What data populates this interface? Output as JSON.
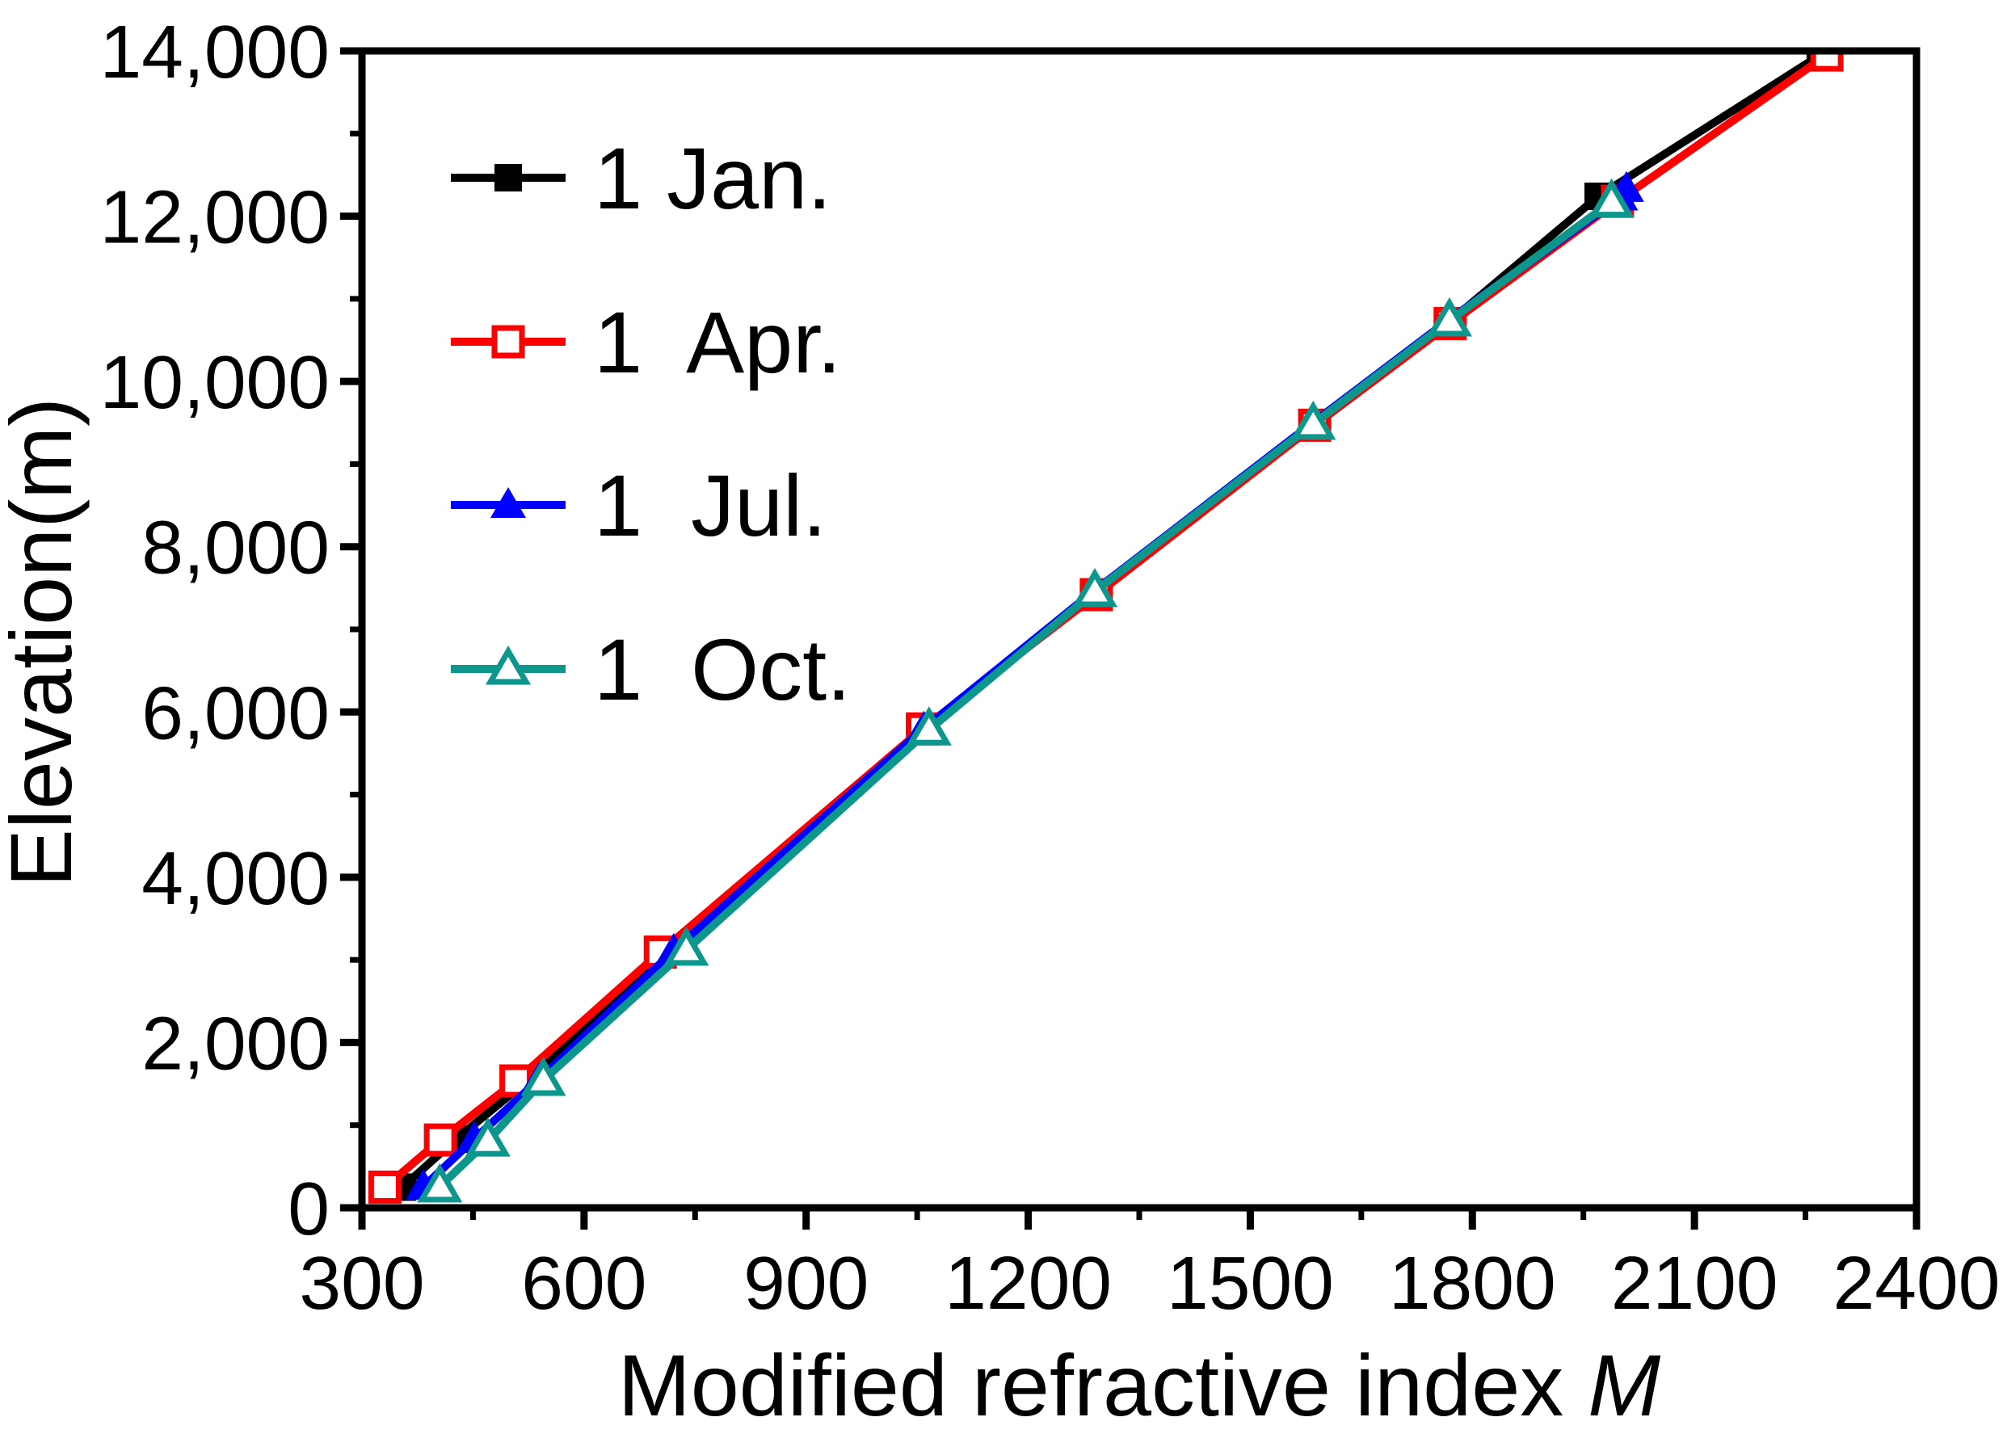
{
  "chart_data": {
    "type": "line",
    "title": "",
    "xlabel": "Modified refractive index ",
    "xlabel_italic": "M",
    "ylabel": "Elevation(m)",
    "grid": false,
    "legend_position": "top-left",
    "background": "#ffffff",
    "axis_color": "#000000",
    "x_axis": {
      "min": 300,
      "max": 2400,
      "major_tick": 300,
      "minor_tick": 150,
      "tick_labels": [
        "300",
        "600",
        "900",
        "1200",
        "1500",
        "1800",
        "2100",
        "2400"
      ]
    },
    "y_axis": {
      "min": 0,
      "max": 14000,
      "major_tick": 2000,
      "minor_tick": 1000,
      "tick_labels": [
        "0",
        "2,000",
        "4,000",
        "6,000",
        "8,000",
        "10,000",
        "12,000",
        "14,000"
      ]
    },
    "series": [
      {
        "name": "1 Jan.",
        "color": "#000000",
        "marker": "square-filled",
        "points": [
          [
            355,
            250
          ],
          [
            427,
            830
          ],
          [
            524,
            1540
          ],
          [
            713,
            3100
          ],
          [
            1060,
            5790
          ],
          [
            1290,
            7435
          ],
          [
            1585,
            9480
          ],
          [
            1768,
            10715
          ],
          [
            1970,
            12240
          ],
          [
            2270,
            13950
          ]
        ]
      },
      {
        "name": "1  Apr.",
        "color": "#FF0000",
        "marker": "square-open",
        "points": [
          [
            331,
            250
          ],
          [
            406,
            820
          ],
          [
            508,
            1535
          ],
          [
            703,
            3095
          ],
          [
            1057,
            5795
          ],
          [
            1292,
            7420
          ],
          [
            1587,
            9470
          ],
          [
            1770,
            10700
          ],
          [
            1996,
            12180
          ],
          [
            2279,
            13950
          ]
        ]
      },
      {
        "name": "1  Jul.",
        "color": "#0000FF",
        "marker": "triangle-filled",
        "points": [
          [
            383,
            255
          ],
          [
            452,
            835
          ],
          [
            539,
            1550
          ],
          [
            721,
            3110
          ],
          [
            1059,
            5800
          ],
          [
            1287,
            7450
          ],
          [
            1583,
            9490
          ],
          [
            1766,
            10730
          ],
          [
            2000,
            12225
          ],
          [
            2008,
            12330
          ]
        ]
      },
      {
        "name": "1  Oct.",
        "color": "#0D968C",
        "marker": "triangle-open",
        "points": [
          [
            405,
            255
          ],
          [
            470,
            810
          ],
          [
            545,
            1545
          ],
          [
            738,
            3120
          ],
          [
            1066,
            5785
          ],
          [
            1290,
            7460
          ],
          [
            1585,
            9485
          ],
          [
            1769,
            10735
          ],
          [
            1988,
            12175
          ]
        ]
      }
    ]
  }
}
